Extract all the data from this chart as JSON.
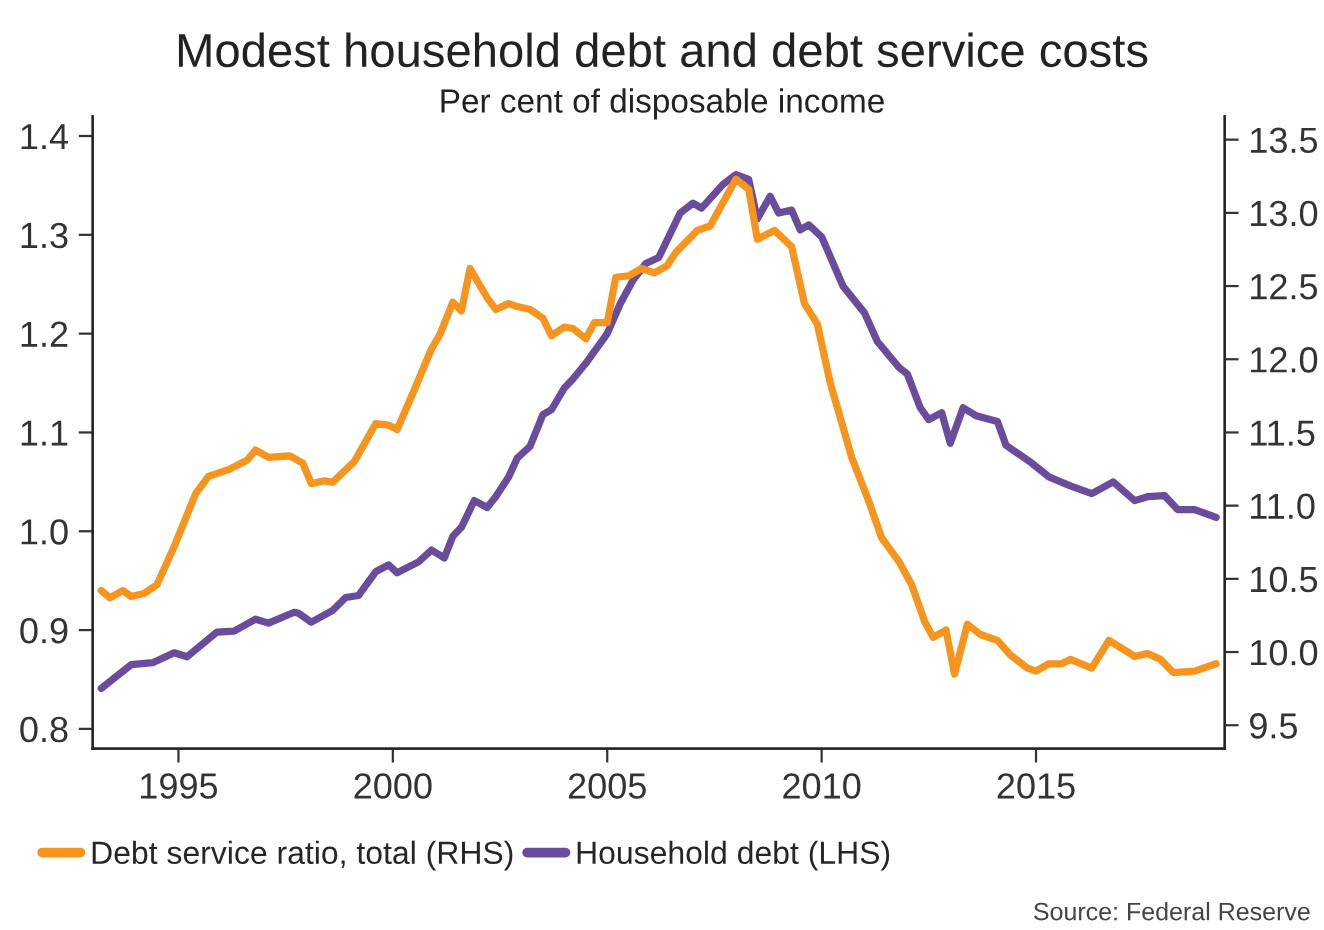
{
  "chart_data": {
    "type": "line",
    "title": "Modest household debt and debt service costs",
    "subtitle": "Per cent of disposable income",
    "xlim": [
      1993,
      2019.4
    ],
    "xticks": [
      1995,
      2000,
      2005,
      2010,
      2015
    ],
    "ylim": [
      0.78,
      1.42
    ],
    "yticks": [
      0.8,
      0.9,
      {
        "value": 1,
        "label": "1.0"
      },
      1.1,
      1.2,
      1.3,
      1.4
    ],
    "y2lim": [
      9.34,
      13.66
    ],
    "y2ticks": [
      9.5,
      {
        "value": 10,
        "label": "10.0"
      },
      10.5,
      {
        "value": 11,
        "label": "11.0"
      },
      11.5,
      {
        "value": 12,
        "label": "12.0"
      },
      12.5,
      {
        "value": 13,
        "label": "13.0"
      },
      13.5
    ],
    "grid": false,
    "legend": "bottom",
    "marker": "none",
    "line_style": "solid",
    "annotations": [
      "Source: Federal Reserve"
    ],
    "series": [
      {
        "name": "Debt service ratio, total (RHS)",
        "color": "#f7941d",
        "axis": "y2",
        "x": [
          1993.2,
          1993.4,
          1993.7,
          1993.9,
          1994.2,
          1994.5,
          1994.9,
          1995.4,
          1995.7,
          1996.2,
          1996.6,
          1996.8,
          1997.1,
          1997.6,
          1997.9,
          1998.1,
          1998.4,
          1998.6,
          1999.1,
          1999.6,
          1999.9,
          2000.1,
          2000.5,
          2000.9,
          2001.1,
          2001.4,
          2001.6,
          2001.8,
          2002.2,
          2002.4,
          2002.7,
          2002.9,
          2003.2,
          2003.5,
          2003.7,
          2004.0,
          2004.2,
          2004.5,
          2004.7,
          2005.0,
          2005.2,
          2005.5,
          2005.8,
          2006.1,
          2006.4,
          2006.6,
          2007.1,
          2007.4,
          2008.0,
          2008.3,
          2008.5,
          2008.9,
          2009.3,
          2009.6,
          2009.9,
          2010.2,
          2010.7,
          2011.1,
          2011.4,
          2011.8,
          2012.1,
          2012.4,
          2012.6,
          2012.9,
          2013.1,
          2013.4,
          2013.7,
          2014.1,
          2014.4,
          2014.8,
          2015.0,
          2015.3,
          2015.6,
          2015.8,
          2016.3,
          2016.7,
          2017.3,
          2017.6,
          2017.9,
          2018.2,
          2018.7,
          2019.2
        ],
        "values": [
          10.42,
          10.37,
          10.42,
          10.38,
          10.4,
          10.46,
          10.72,
          11.08,
          11.2,
          11.25,
          11.31,
          11.38,
          11.33,
          11.34,
          11.29,
          11.15,
          11.17,
          11.16,
          11.3,
          11.56,
          11.55,
          11.52,
          11.79,
          12.07,
          12.17,
          12.39,
          12.33,
          12.62,
          12.42,
          12.34,
          12.38,
          12.36,
          12.34,
          12.28,
          12.16,
          12.22,
          12.21,
          12.14,
          12.25,
          12.25,
          12.56,
          12.57,
          12.62,
          12.59,
          12.64,
          12.73,
          12.88,
          12.91,
          13.23,
          13.16,
          12.82,
          12.88,
          12.77,
          12.38,
          12.24,
          11.84,
          11.33,
          11.03,
          10.78,
          10.62,
          10.46,
          10.21,
          10.1,
          10.15,
          9.85,
          10.19,
          10.12,
          10.08,
          9.98,
          9.89,
          9.87,
          9.92,
          9.92,
          9.95,
          9.89,
          10.08,
          9.97,
          9.99,
          9.95,
          9.86,
          9.87,
          9.92
        ]
      },
      {
        "name": "Household debt (LHS)",
        "color": "#6a4c9c",
        "x": [
          1993.2,
          1993.9,
          1994.4,
          1994.9,
          1995.2,
          1995.9,
          1996.3,
          1996.8,
          1997.1,
          1997.7,
          1997.8,
          1998.1,
          1998.6,
          1998.9,
          1999.2,
          1999.6,
          1999.9,
          2000.1,
          2000.6,
          2000.9,
          2001.2,
          2001.4,
          2001.6,
          2001.9,
          2002.2,
          2002.4,
          2002.7,
          2002.9,
          2003.2,
          2003.5,
          2003.7,
          2004.0,
          2004.2,
          2004.5,
          2005.0,
          2005.3,
          2005.6,
          2005.9,
          2006.2,
          2006.7,
          2007.0,
          2007.2,
          2007.7,
          2008.0,
          2008.3,
          2008.5,
          2008.8,
          2009.0,
          2009.3,
          2009.5,
          2009.7,
          2010.0,
          2010.5,
          2011.0,
          2011.3,
          2011.8,
          2012.0,
          2012.3,
          2012.5,
          2012.8,
          2013.0,
          2013.3,
          2013.6,
          2014.1,
          2014.3,
          2014.9,
          2015.3,
          2015.8,
          2016.3,
          2016.8,
          2017.3,
          2017.6,
          2018.0,
          2018.3,
          2018.7,
          2019.2
        ],
        "values": [
          0.841,
          0.865,
          0.867,
          0.877,
          0.873,
          0.898,
          0.899,
          0.911,
          0.907,
          0.918,
          0.917,
          0.908,
          0.92,
          0.933,
          0.935,
          0.959,
          0.966,
          0.958,
          0.969,
          0.981,
          0.973,
          0.995,
          1.004,
          1.031,
          1.024,
          1.035,
          1.055,
          1.074,
          1.086,
          1.118,
          1.123,
          1.145,
          1.154,
          1.17,
          1.2,
          1.23,
          1.254,
          1.271,
          1.277,
          1.322,
          1.332,
          1.327,
          1.351,
          1.361,
          1.356,
          1.316,
          1.339,
          1.322,
          1.325,
          1.305,
          1.31,
          1.298,
          1.248,
          1.221,
          1.192,
          1.166,
          1.159,
          1.125,
          1.113,
          1.12,
          1.089,
          1.125,
          1.117,
          1.111,
          1.087,
          1.069,
          1.055,
          1.046,
          1.038,
          1.05,
          1.031,
          1.035,
          1.036,
          1.022,
          1.022,
          1.014
        ]
      }
    ]
  }
}
